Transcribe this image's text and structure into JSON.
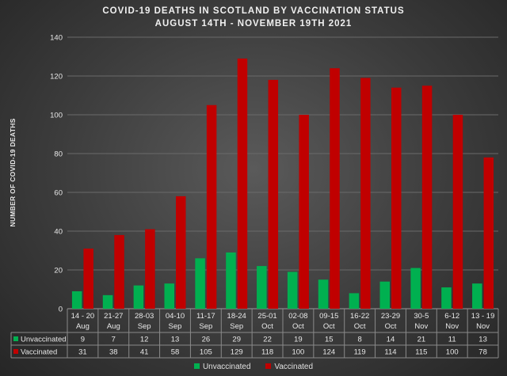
{
  "colors": {
    "unvaccinated": "#00b050",
    "vaccinated": "#c00000",
    "grid": "#6a6a6a",
    "text": "#e8e8e8",
    "table_line": "#8a8a8a"
  },
  "chart_data": {
    "type": "bar",
    "title": "COVID-19 DEATHS IN SCOTLAND BY VACCINATION STATUS",
    "subtitle": "AUGUST 14TH - NOVEMBER 19TH 2021",
    "ylabel": "NUMBER OF COVID-19 DEATHS",
    "xlabel": "",
    "ylim": [
      0,
      140
    ],
    "yticks": [
      0,
      20,
      40,
      60,
      80,
      100,
      120,
      140
    ],
    "grid": true,
    "legend_position": "bottom",
    "categories": [
      [
        "14 - 20",
        "Aug"
      ],
      [
        "21-27",
        "Aug"
      ],
      [
        "28-03",
        "Sep"
      ],
      [
        "04-10",
        "Sep"
      ],
      [
        "11-17",
        "Sep"
      ],
      [
        "18-24",
        "Sep"
      ],
      [
        "25-01",
        "Oct"
      ],
      [
        "02-08",
        "Oct"
      ],
      [
        "09-15",
        "Oct"
      ],
      [
        "16-22",
        "Oct"
      ],
      [
        "23-29",
        "Oct"
      ],
      [
        "30-5",
        "Nov"
      ],
      [
        "6-12",
        "Nov"
      ],
      [
        "13 - 19",
        "Nov"
      ]
    ],
    "series": [
      {
        "name": "Unvaccinated",
        "color": "#00b050",
        "values": [
          9,
          7,
          12,
          13,
          26,
          29,
          22,
          19,
          15,
          8,
          14,
          21,
          11,
          13
        ]
      },
      {
        "name": "Vaccinated",
        "color": "#c00000",
        "values": [
          31,
          38,
          41,
          58,
          105,
          129,
          118,
          100,
          124,
          119,
          114,
          115,
          100,
          78
        ]
      }
    ]
  }
}
